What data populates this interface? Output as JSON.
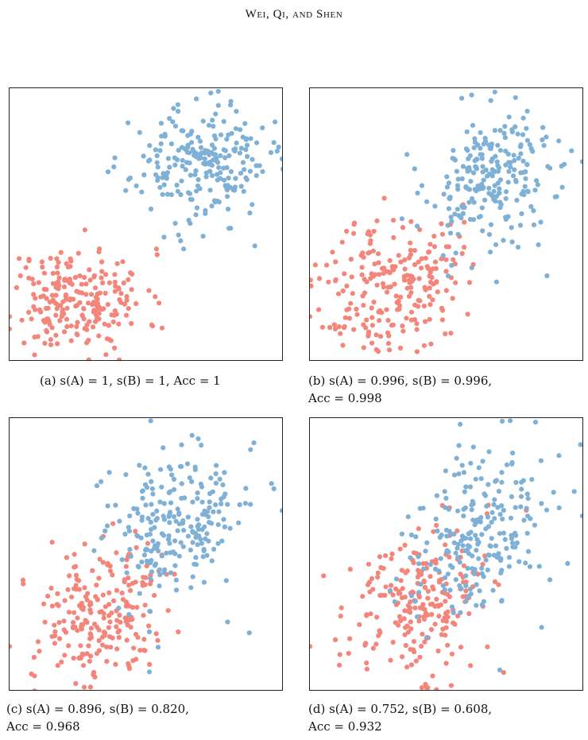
{
  "header": {
    "running_title": "Wei, Qi, and Shen"
  },
  "colors": {
    "cluster_A": "#f4857a",
    "cluster_B": "#7fb0d6"
  },
  "chart_data": [
    {
      "type": "scatter",
      "panel": "a",
      "caption_line1": "(a) s(A) = 1, s(B) = 1, Acc = 1",
      "caption_line2": "",
      "xlim": [
        0,
        10
      ],
      "ylim": [
        0,
        10
      ],
      "grid": false,
      "series": [
        {
          "key": "A",
          "center": [
            2.5,
            2.2
          ],
          "spread": [
            1.25,
            0.95
          ],
          "rho": 0,
          "n": 230,
          "seed": 11
        },
        {
          "key": "B",
          "center": [
            7.0,
            7.2
          ],
          "spread": [
            1.25,
            1.05
          ],
          "rho": 0,
          "n": 230,
          "seed": 23
        }
      ],
      "outliers": [
        {
          "key": "A",
          "x": 0.0,
          "y": 1.6
        },
        {
          "key": "A",
          "x": 0.4,
          "y": 3.1
        },
        {
          "key": "A",
          "x": 0.6,
          "y": 3.4
        },
        {
          "key": "B",
          "x": 9.7,
          "y": 8.0
        },
        {
          "key": "B",
          "x": 10.0,
          "y": 7.4
        },
        {
          "key": "B",
          "x": 9.0,
          "y": 4.2
        }
      ]
    },
    {
      "type": "scatter",
      "panel": "b",
      "caption_line1": "(b) s(A) = 0.996, s(B) = 0.996,",
      "caption_line2": "Acc = 0.998",
      "xlim": [
        0,
        10
      ],
      "ylim": [
        0,
        10
      ],
      "grid": false,
      "series": [
        {
          "key": "A",
          "center": [
            3.0,
            2.8
          ],
          "spread": [
            1.25,
            1.35
          ],
          "rho": 0.2,
          "n": 230,
          "seed": 37
        },
        {
          "key": "B",
          "center": [
            6.7,
            6.6
          ],
          "spread": [
            1.25,
            1.35
          ],
          "rho": 0.2,
          "n": 230,
          "seed": 53
        }
      ],
      "outliers": [
        {
          "key": "A",
          "x": 0.2,
          "y": 3.5
        },
        {
          "key": "A",
          "x": 0.0,
          "y": 1.6
        },
        {
          "key": "A",
          "x": 0.9,
          "y": 1.3
        },
        {
          "key": "B",
          "x": 9.6,
          "y": 7.7
        },
        {
          "key": "B",
          "x": 10.0,
          "y": 7.3
        },
        {
          "key": "B",
          "x": 8.7,
          "y": 3.1
        },
        {
          "key": "B",
          "x": 9.0,
          "y": 6.0
        }
      ]
    },
    {
      "type": "scatter",
      "panel": "c",
      "caption_line1": "(c) s(A) = 0.896, s(B) = 0.820,",
      "caption_line2": "Acc = 0.968",
      "xlim": [
        0,
        10
      ],
      "ylim": [
        0,
        10
      ],
      "grid": false,
      "series": [
        {
          "key": "A",
          "center": [
            3.4,
            2.7
          ],
          "spread": [
            1.3,
            1.5
          ],
          "rho": 0.3,
          "n": 230,
          "seed": 71
        },
        {
          "key": "B",
          "center": [
            6.2,
            6.2
          ],
          "spread": [
            1.25,
            1.5
          ],
          "rho": 0.3,
          "n": 230,
          "seed": 89
        }
      ],
      "outliers": [
        {
          "key": "A",
          "x": 0.0,
          "y": 1.6
        },
        {
          "key": "A",
          "x": 0.5,
          "y": 3.9
        },
        {
          "key": "A",
          "x": 0.9,
          "y": 1.2
        },
        {
          "key": "B",
          "x": 9.7,
          "y": 7.4
        },
        {
          "key": "B",
          "x": 10.0,
          "y": 6.6
        },
        {
          "key": "B",
          "x": 8.0,
          "y": 2.5
        },
        {
          "key": "B",
          "x": 8.8,
          "y": 2.1
        }
      ]
    },
    {
      "type": "scatter",
      "panel": "d",
      "caption_line1": "(d) s(A) = 0.752, s(B) = 0.608,",
      "caption_line2": "Acc = 0.932",
      "xlim": [
        0,
        10
      ],
      "ylim": [
        0,
        10
      ],
      "grid": false,
      "series": [
        {
          "key": "A",
          "center": [
            3.8,
            3.1
          ],
          "spread": [
            1.35,
            1.6
          ],
          "rho": 0.3,
          "n": 230,
          "seed": 97
        },
        {
          "key": "B",
          "center": [
            6.2,
            5.8
          ],
          "spread": [
            1.3,
            1.6
          ],
          "rho": 0.3,
          "n": 230,
          "seed": 113
        }
      ],
      "outliers": [
        {
          "key": "A",
          "x": 0.5,
          "y": 4.2
        },
        {
          "key": "A",
          "x": 0.0,
          "y": 1.6
        },
        {
          "key": "A",
          "x": 1.1,
          "y": 1.3
        },
        {
          "key": "B",
          "x": 9.7,
          "y": 7.3
        },
        {
          "key": "B",
          "x": 10.0,
          "y": 6.4
        },
        {
          "key": "B",
          "x": 8.5,
          "y": 2.3
        }
      ]
    }
  ]
}
